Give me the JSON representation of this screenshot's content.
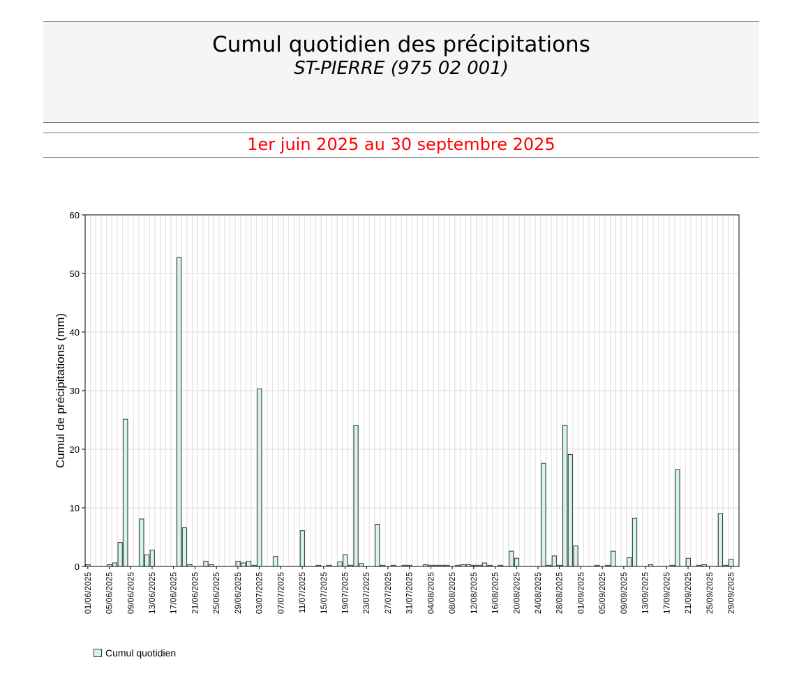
{
  "header": {
    "title": "Cumul quotidien des précipitations",
    "station": "ST-PIERRE (975 02 001)",
    "period": "1er juin 2025 au 30 septembre 2025"
  },
  "legend": {
    "label": "Cumul quotidien"
  },
  "colors": {
    "bar_fill": "#d4f5e9",
    "bar_stroke": "#333333",
    "period_text": "#ff0000",
    "grid": "#dddddd"
  },
  "chart_data": {
    "type": "bar",
    "title": "Cumul quotidien des précipitations",
    "subtitle": "ST-PIERRE (975 02 001)",
    "xlabel": "",
    "ylabel": "Cumul de précipitations (mm)",
    "ylim": [
      0,
      60
    ],
    "yticks": [
      0,
      10,
      20,
      30,
      40,
      50,
      60
    ],
    "grid": true,
    "legend_position": "bottom-left",
    "xtick_labels": [
      "01/06/2025",
      "05/06/2025",
      "09/06/2025",
      "13/06/2025",
      "17/06/2025",
      "21/06/2025",
      "25/06/2025",
      "29/06/2025",
      "03/07/2025",
      "07/07/2025",
      "11/07/2025",
      "15/07/2025",
      "19/07/2025",
      "23/07/2025",
      "27/07/2025",
      "31/07/2025",
      "04/08/2025",
      "08/08/2025",
      "12/08/2025",
      "16/08/2025",
      "20/08/2025",
      "24/08/2025",
      "28/08/2025",
      "01/09/2025",
      "05/09/2025",
      "09/09/2025",
      "13/09/2025",
      "17/09/2025",
      "21/09/2025",
      "25/09/2025",
      "29/09/2025"
    ],
    "start_date": "01/06/2025",
    "end_date": "30/09/2025",
    "series": [
      {
        "name": "Cumul quotidien",
        "values": [
          0.3,
          0,
          0,
          0,
          0.3,
          0.6,
          4.1,
          25.1,
          0,
          0,
          8.1,
          2.0,
          2.8,
          0,
          0,
          0,
          0,
          52.7,
          6.6,
          0.3,
          0,
          0,
          0.9,
          0.3,
          0,
          0,
          0,
          0,
          0.9,
          0.6,
          0.9,
          0.2,
          30.3,
          0,
          0,
          1.7,
          0,
          0,
          0,
          0,
          6.1,
          0,
          0,
          0.2,
          0,
          0.2,
          0,
          0.8,
          2.0,
          0.2,
          24.1,
          0.5,
          0,
          0,
          7.2,
          0.2,
          0,
          0.2,
          0,
          0.2,
          0.2,
          0,
          0,
          0.3,
          0.2,
          0.2,
          0.2,
          0.2,
          0,
          0.2,
          0.3,
          0.3,
          0.2,
          0.2,
          0.6,
          0.2,
          0,
          0.2,
          0,
          2.6,
          1.4,
          0,
          0,
          0,
          0,
          17.6,
          0.2,
          1.8,
          0.2,
          24.1,
          19.1,
          3.5,
          0,
          0,
          0,
          0.2,
          0,
          0.2,
          2.6,
          0,
          0,
          1.5,
          8.2,
          0,
          0,
          0.3,
          0,
          0,
          0,
          0.2,
          16.5,
          0,
          1.4,
          0,
          0.2,
          0.3,
          0,
          0,
          9.0,
          0.2,
          1.2,
          0
        ]
      }
    ]
  }
}
